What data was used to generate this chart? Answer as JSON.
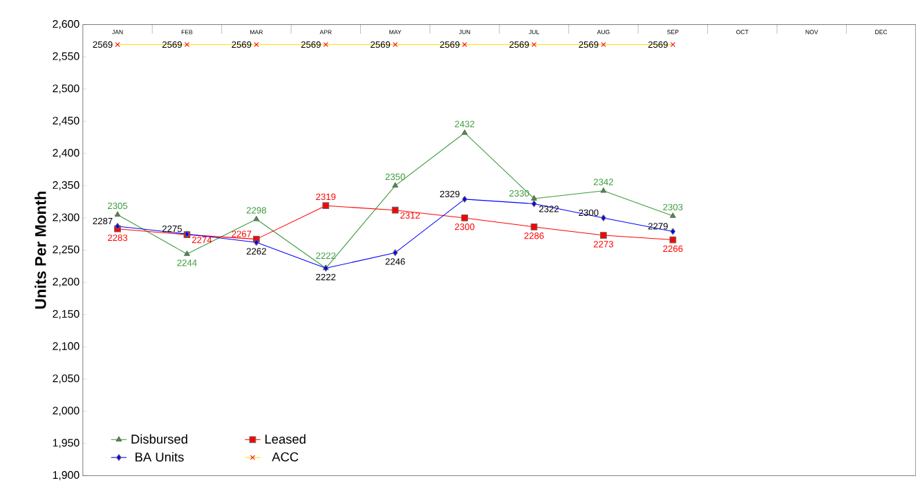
{
  "chart_data": {
    "type": "line",
    "ylabel": "Units Per Month",
    "categories": [
      "JAN",
      "FEB",
      "MAR",
      "APR",
      "MAY",
      "JUN",
      "JUL",
      "AUG",
      "SEP",
      "OCT",
      "NOV",
      "DEC"
    ],
    "series": [
      {
        "name": "Disbursed",
        "color": "#3a9a3a",
        "marker": "triangle",
        "values": [
          2305,
          2244,
          2298,
          2222,
          2350,
          2432,
          2330,
          2342,
          2303,
          null,
          null,
          null
        ]
      },
      {
        "name": "Leased",
        "color": "#ff0000",
        "marker": "square",
        "values": [
          2283,
          2274,
          2267,
          2319,
          2312,
          2300,
          2286,
          2273,
          2266,
          null,
          null,
          null
        ]
      },
      {
        "name": "BA Units",
        "color": "#0000ff",
        "marker": "diamond",
        "values": [
          2287,
          2275,
          2262,
          2222,
          2246,
          2329,
          2322,
          2300,
          2279,
          null,
          null,
          null
        ]
      },
      {
        "name": "ACC",
        "color": "#ffe000",
        "marker": "cross",
        "values": [
          2569,
          2569,
          2569,
          2569,
          2569,
          2569,
          2569,
          2569,
          2569,
          null,
          null,
          null
        ]
      }
    ],
    "ylim": [
      1900,
      2600
    ],
    "yticks": [
      {
        "value": 1900,
        "label": "1,900"
      },
      {
        "value": 1950,
        "label": "1,950"
      },
      {
        "value": 2000,
        "label": "2,000"
      },
      {
        "value": 2050,
        "label": "2,050"
      },
      {
        "value": 2100,
        "label": "2,100"
      },
      {
        "value": 2150,
        "label": "2,150"
      },
      {
        "value": 2200,
        "label": "2,200"
      },
      {
        "value": 2250,
        "label": "2,250"
      },
      {
        "value": 2300,
        "label": "2,300"
      },
      {
        "value": 2350,
        "label": "2,350"
      },
      {
        "value": 2400,
        "label": "2,400"
      },
      {
        "value": 2450,
        "label": "2,450"
      },
      {
        "value": 2500,
        "label": "2,500"
      },
      {
        "value": 2550,
        "label": "2,550"
      },
      {
        "value": 2600,
        "label": "2,600"
      }
    ],
    "data_labels": true,
    "grid": false,
    "legend": "bottom left"
  }
}
